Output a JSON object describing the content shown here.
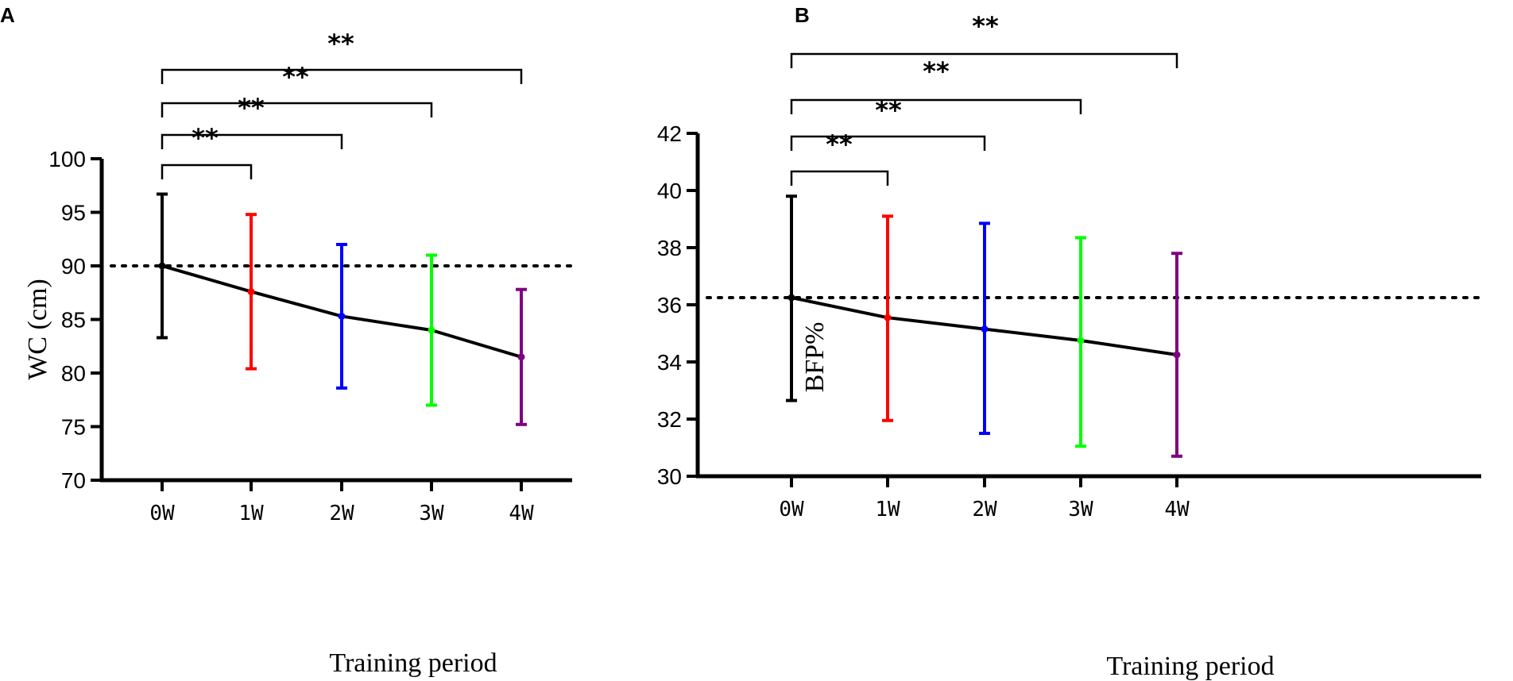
{
  "chart_data": [
    {
      "panel": "A",
      "type": "line",
      "xlabel": "Training period",
      "ylabel": "WC (cm)",
      "categories": [
        "0W",
        "1W",
        "2W",
        "3W",
        "4W"
      ],
      "series": [
        {
          "name": "WC",
          "values": [
            90.0,
            87.6,
            85.3,
            84.0,
            81.5
          ],
          "error_low": [
            83.3,
            80.4,
            78.6,
            77.0,
            75.2
          ],
          "error_high": [
            96.7,
            94.8,
            92.0,
            91.0,
            87.8
          ],
          "marker_colors": [
            "#000000",
            "#ff0000",
            "#0000ff",
            "#00ff00",
            "#800080"
          ]
        }
      ],
      "reference_line": 90.0,
      "ylim": [
        70,
        100
      ],
      "yticks": [
        70,
        75,
        80,
        85,
        90,
        95,
        100
      ],
      "significance": [
        {
          "from": "0W",
          "to": "1W",
          "label": "**"
        },
        {
          "from": "0W",
          "to": "2W",
          "label": "**"
        },
        {
          "from": "0W",
          "to": "3W",
          "label": "**"
        },
        {
          "from": "0W",
          "to": "4W",
          "label": "**"
        }
      ]
    },
    {
      "panel": "B",
      "type": "line",
      "xlabel": "Training period",
      "ylabel": "BFP%",
      "categories": [
        "0W",
        "1W",
        "2W",
        "3W",
        "4W"
      ],
      "series": [
        {
          "name": "BFP%",
          "values": [
            36.25,
            35.55,
            35.15,
            34.75,
            34.25
          ],
          "error_low": [
            32.65,
            31.95,
            31.5,
            31.05,
            30.7
          ],
          "error_high": [
            39.8,
            39.1,
            38.85,
            38.35,
            37.8
          ],
          "marker_colors": [
            "#000000",
            "#ff0000",
            "#0000ff",
            "#00ff00",
            "#800080"
          ]
        }
      ],
      "reference_line": 36.25,
      "ylim": [
        30,
        42
      ],
      "yticks": [
        30,
        32,
        34,
        36,
        38,
        40,
        42
      ],
      "significance": [
        {
          "from": "0W",
          "to": "1W",
          "label": "**"
        },
        {
          "from": "0W",
          "to": "2W",
          "label": "**"
        },
        {
          "from": "0W",
          "to": "3W",
          "label": "**"
        },
        {
          "from": "0W",
          "to": "4W",
          "label": "**"
        }
      ]
    }
  ]
}
